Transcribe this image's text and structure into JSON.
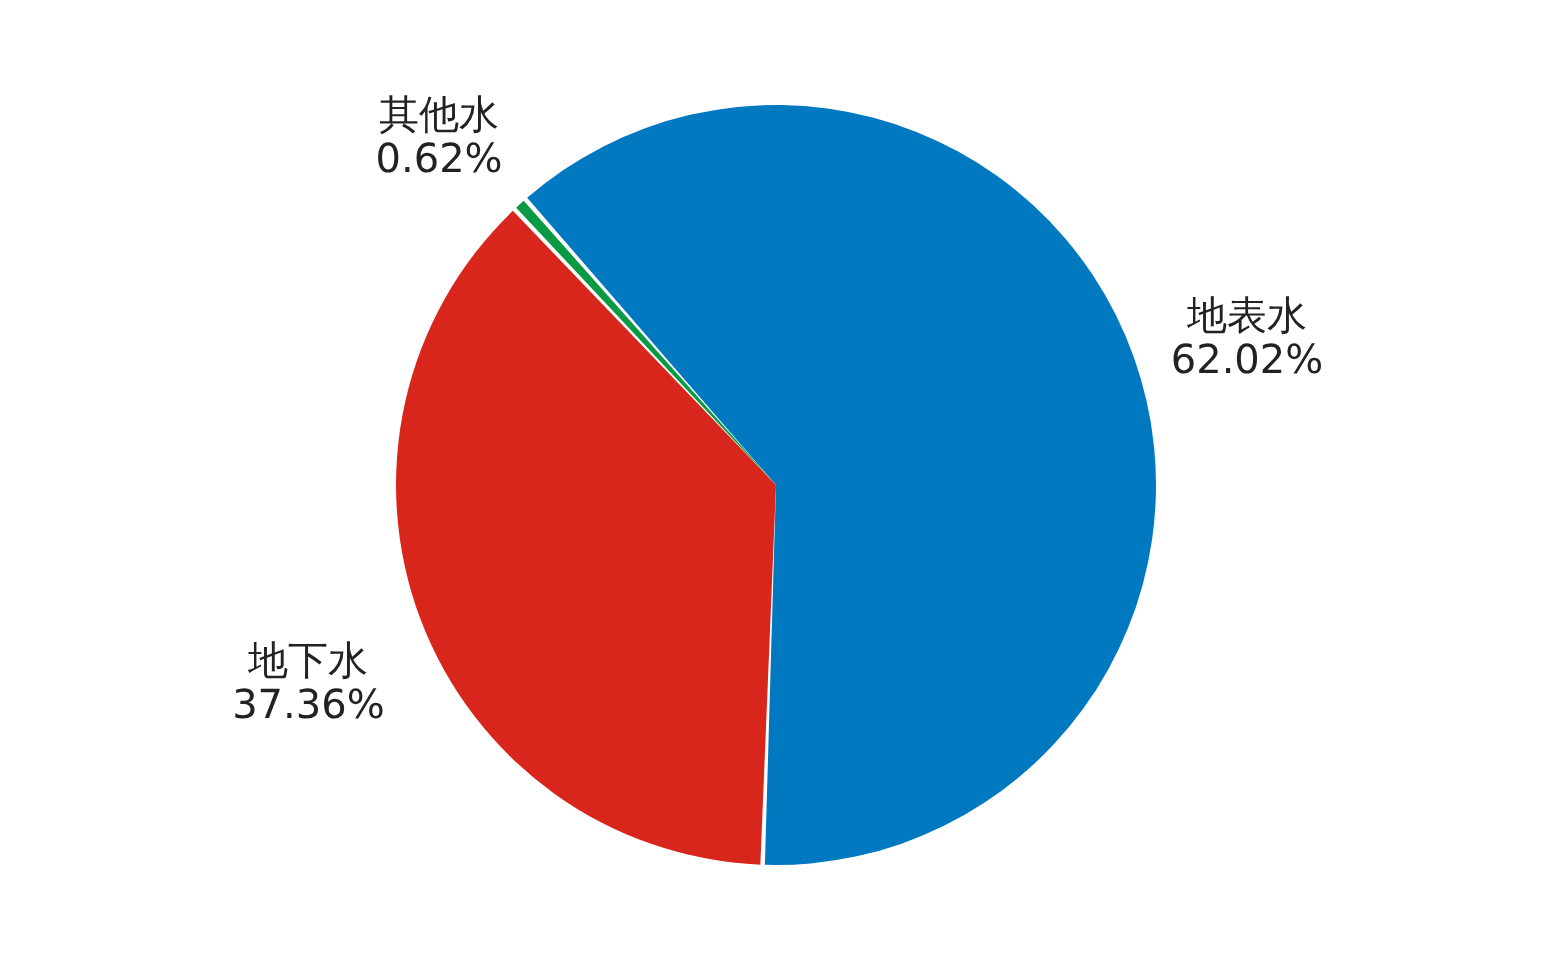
{
  "chart_data": {
    "type": "pie",
    "categories": [
      "地表水",
      "地下水",
      "其他水"
    ],
    "values": [
      62.02,
      37.36,
      0.62
    ],
    "value_labels": [
      "62.02%",
      "37.36%",
      "0.62%"
    ],
    "colors": [
      "#0079c1",
      "#d9261c",
      "#0a9a44"
    ]
  }
}
